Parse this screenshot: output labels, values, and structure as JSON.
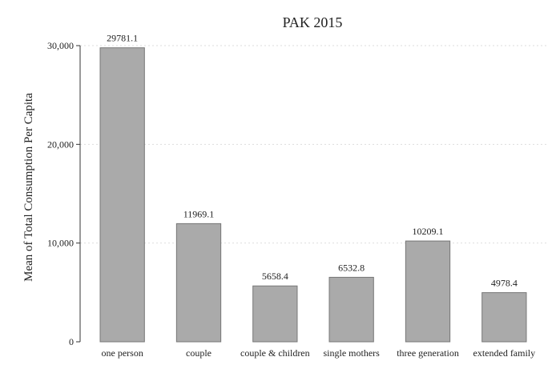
{
  "chart_data": {
    "type": "bar",
    "title": "PAK 2015",
    "xlabel": "",
    "ylabel": "Mean of Total Consumption Per Capita",
    "categories": [
      "one person",
      "couple",
      "couple & children",
      "single mothers",
      "three generation",
      "extended family"
    ],
    "values": [
      29781.1,
      11969.1,
      5658.4,
      6532.8,
      10209.1,
      4978.4
    ],
    "data_labels": [
      "29781.1",
      "11969.1",
      "5658.4",
      "6532.8",
      "10209.1",
      "4978.4"
    ],
    "ylim": [
      0,
      30000
    ],
    "yticks": [
      0,
      10000,
      20000,
      30000
    ],
    "ytick_labels": [
      "0",
      "10,000",
      "20,000",
      "30,000"
    ],
    "grid": true,
    "bar_color": "#aaaaaa",
    "bar_edge_color": "#777777"
  }
}
